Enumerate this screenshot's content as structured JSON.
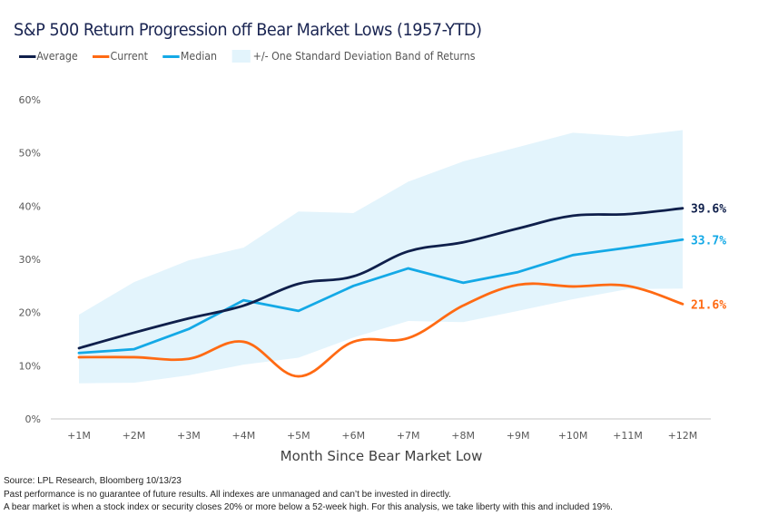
{
  "chart_data": {
    "type": "line",
    "title": "S&P 500 Return Progression off Bear Market Lows (1957-YTD)",
    "xlabel": "Month Since Bear Market Low",
    "ylabel": "",
    "categories": [
      "+1M",
      "+2M",
      "+3M",
      "+4M",
      "+5M",
      "+6M",
      "+7M",
      "+8M",
      "+9M",
      "+10M",
      "+11M",
      "+12M"
    ],
    "ylim": [
      0,
      60
    ],
    "yticks": [
      0,
      10,
      20,
      30,
      40,
      50,
      60
    ],
    "ytick_labels": [
      "0%",
      "10%",
      "20%",
      "30%",
      "40%",
      "50%",
      "60%"
    ],
    "grid": false,
    "legend_position": "top-left",
    "series": [
      {
        "name": "Average",
        "color": "#0f1f4b",
        "smooth": true,
        "values": [
          13.3,
          16.2,
          18.9,
          21.3,
          25.4,
          26.8,
          31.5,
          33.2,
          35.8,
          38.2,
          38.5,
          39.6
        ],
        "end_label": "39.6%"
      },
      {
        "name": "Current",
        "color": "#ff6a13",
        "smooth": true,
        "values": [
          11.6,
          11.6,
          11.3,
          14.5,
          8.0,
          14.5,
          15.2,
          21.3,
          25.2,
          24.9,
          25.0,
          21.6
        ],
        "end_label": "21.6%"
      },
      {
        "name": "Median",
        "color": "#14a9e6",
        "smooth": false,
        "values": [
          12.4,
          13.1,
          16.9,
          22.3,
          20.3,
          25.0,
          28.3,
          25.6,
          27.6,
          30.8,
          32.2,
          33.7
        ],
        "end_label": "33.7%"
      }
    ],
    "band": {
      "name": "+/- One Standard Deviation Band of Returns",
      "color": "#e3f4fc",
      "upper": [
        19.6,
        25.7,
        29.8,
        32.2,
        39.0,
        38.7,
        44.6,
        48.4,
        51.1,
        53.8,
        53.1,
        54.3
      ],
      "lower": [
        6.7,
        6.8,
        8.2,
        10.2,
        11.5,
        15.3,
        18.4,
        18.2,
        20.3,
        22.5,
        24.4,
        24.5
      ]
    }
  },
  "legend": {
    "average": "Average",
    "current": "Current",
    "median": "Median",
    "band": "+/- One Standard Deviation Band of Returns"
  },
  "footnotes": {
    "source": "Source: LPL Research, Bloomberg 10/13/23",
    "disclaimer": "Past performance is no guarantee of future results. All indexes are unmanaged and can’t be invested in directly.",
    "definition": "A bear market is when a stock index or security closes 20% or more below a 52-week high. For this analysis, we take liberty with this and included 19%."
  }
}
